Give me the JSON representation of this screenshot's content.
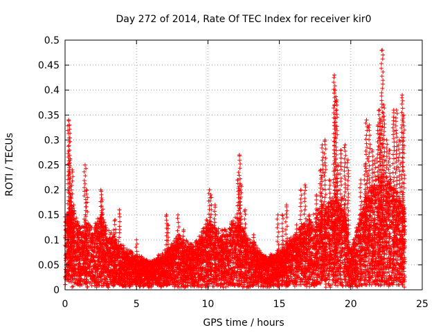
{
  "chart_data": {
    "type": "scatter",
    "title": "Day 272 of 2014, Rate Of TEC Index for receiver kir0",
    "xlabel": "GPS time / hours",
    "ylabel": "ROTI / TECUs",
    "xlim": [
      0,
      25
    ],
    "ylim": [
      0,
      0.5
    ],
    "x_ticks": [
      0,
      5,
      10,
      15,
      20,
      25
    ],
    "x_tick_labels": [
      "0",
      "5",
      "10",
      "15",
      "20",
      "25"
    ],
    "y_ticks": [
      0,
      0.05,
      0.1,
      0.15,
      0.2,
      0.25,
      0.3,
      0.35,
      0.4,
      0.45,
      0.5
    ],
    "y_tick_labels": [
      "0",
      "0.05",
      "0.1",
      "0.15",
      "0.2",
      "0.25",
      "0.3",
      "0.35",
      "0.4",
      "0.45",
      "0.5"
    ],
    "grid": true,
    "marker": "+",
    "marker_color": "#ff0000",
    "series": [
      {
        "name": "ROTI",
        "x": [
          0.1,
          0.2,
          0.25,
          0.3,
          0.35,
          0.4,
          0.5,
          0.6,
          0.9,
          1.0,
          1.4,
          1.5,
          2.3,
          2.5,
          2.6,
          2.7,
          3.4,
          3.5,
          3.8,
          4.2,
          5.0,
          5.6,
          6.5,
          7.1,
          7.2,
          7.5,
          7.9,
          8.3,
          9.0,
          9.6,
          9.9,
          10.1,
          10.2,
          10.5,
          11.0,
          11.7,
          12.1,
          12.2,
          12.3,
          12.6,
          13.2,
          13.8,
          14.5,
          14.9,
          15.2,
          15.5,
          16.2,
          16.5,
          16.8,
          17.1,
          17.6,
          17.9,
          18.0,
          18.2,
          18.5,
          18.7,
          18.85,
          18.9,
          19.0,
          19.1,
          19.3,
          19.6,
          19.8,
          20.0,
          20.3,
          20.7,
          21.0,
          21.1,
          21.3,
          21.5,
          21.7,
          21.9,
          22.0,
          22.1,
          22.2,
          22.3,
          22.5,
          22.7,
          23.0,
          23.2,
          23.4,
          23.6,
          23.7
        ],
        "y": [
          0.05,
          0.15,
          0.34,
          0.33,
          0.26,
          0.19,
          0.24,
          0.17,
          0.1,
          0.08,
          0.25,
          0.2,
          0.1,
          0.2,
          0.18,
          0.14,
          0.12,
          0.14,
          0.16,
          0.05,
          0.1,
          0.05,
          0.02,
          0.15,
          0.13,
          0.06,
          0.15,
          0.12,
          0.06,
          0.1,
          0.14,
          0.2,
          0.19,
          0.17,
          0.12,
          0.04,
          0.22,
          0.27,
          0.21,
          0.16,
          0.11,
          0.05,
          0.03,
          0.15,
          0.15,
          0.17,
          0.13,
          0.2,
          0.21,
          0.15,
          0.19,
          0.24,
          0.29,
          0.3,
          0.22,
          0.18,
          0.43,
          0.4,
          0.38,
          0.25,
          0.28,
          0.29,
          0.26,
          0.02,
          0.05,
          0.22,
          0.25,
          0.34,
          0.33,
          0.28,
          0.26,
          0.33,
          0.36,
          0.34,
          0.48,
          0.37,
          0.3,
          0.28,
          0.36,
          0.36,
          0.3,
          0.39,
          0.35
        ],
        "floor": [
          0.02,
          0.02,
          0.03,
          0.03,
          0.03,
          0.03,
          0.02,
          0.02,
          0.01,
          0.01,
          0.02,
          0.02,
          0.01,
          0.02,
          0.02,
          0.02,
          0.01,
          0.02,
          0.01,
          0.01,
          0.01,
          0.01,
          0.01,
          0.01,
          0.01,
          0.01,
          0.01,
          0.01,
          0.01,
          0.01,
          0.01,
          0.02,
          0.02,
          0.02,
          0.01,
          0.01,
          0.01,
          0.01,
          0.01,
          0.01,
          0.01,
          0.01,
          0.01,
          0.01,
          0.01,
          0.01,
          0.01,
          0.01,
          0.02,
          0.02,
          0.02,
          0.02,
          0.02,
          0.02,
          0.02,
          0.02,
          0.02,
          0.02,
          0.02,
          0.02,
          0.02,
          0.02,
          0.02,
          0.01,
          0.01,
          0.01,
          0.01,
          0.01,
          0.01,
          0.01,
          0.01,
          0.01,
          0.01,
          0.01,
          0.01,
          0.01,
          0.01,
          0.01,
          0.01,
          0.01,
          0.01,
          0.01,
          0.01
        ],
        "dense_upper_envelope": [
          [
            0.0,
            0.15
          ],
          [
            0.5,
            0.16
          ],
          [
            1.0,
            0.12
          ],
          [
            2.0,
            0.12
          ],
          [
            2.5,
            0.15
          ],
          [
            3.0,
            0.11
          ],
          [
            4.0,
            0.08
          ],
          [
            5.0,
            0.06
          ],
          [
            6.0,
            0.05
          ],
          [
            7.0,
            0.07
          ],
          [
            8.0,
            0.1
          ],
          [
            9.0,
            0.08
          ],
          [
            10.0,
            0.13
          ],
          [
            11.0,
            0.1
          ],
          [
            12.0,
            0.14
          ],
          [
            13.0,
            0.09
          ],
          [
            14.0,
            0.06
          ],
          [
            15.0,
            0.07
          ],
          [
            16.0,
            0.1
          ],
          [
            17.0,
            0.13
          ],
          [
            18.0,
            0.16
          ],
          [
            19.0,
            0.17
          ],
          [
            19.5,
            0.17
          ],
          [
            20.0,
            0.07
          ],
          [
            20.5,
            0.12
          ],
          [
            21.0,
            0.18
          ],
          [
            22.0,
            0.22
          ],
          [
            23.0,
            0.2
          ],
          [
            23.8,
            0.16
          ]
        ]
      }
    ]
  }
}
